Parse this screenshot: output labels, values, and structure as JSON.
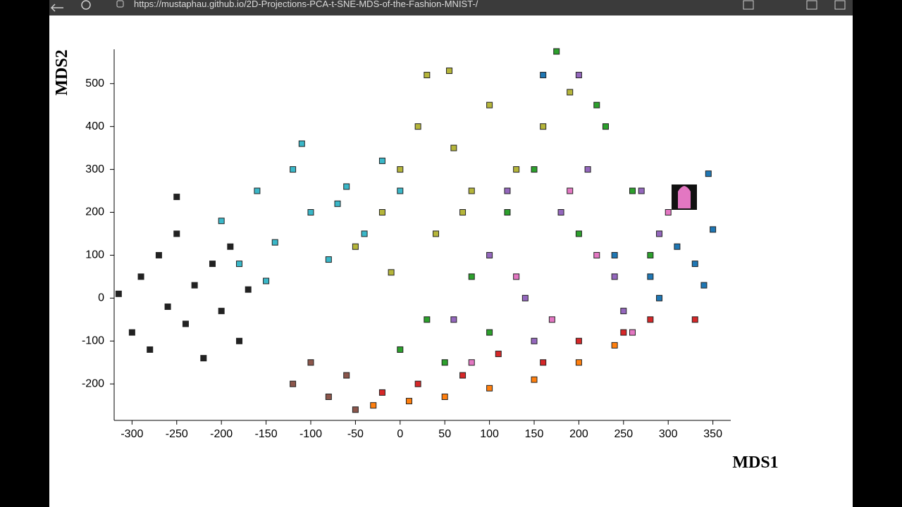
{
  "browser": {
    "url": "https://mustaphau.github.io/2D-Projections-PCA-t-SNE-MDS-of-the-Fashion-MNIST-/"
  },
  "chart_data": {
    "type": "scatter",
    "x_label": "MDS1",
    "y_label": "MDS2",
    "xlim": [
      -320,
      370
    ],
    "ylim": [
      -285,
      580
    ],
    "xticks": [
      -300,
      -250,
      -200,
      -150,
      -100,
      -50,
      0,
      50,
      100,
      150,
      200,
      250,
      300,
      350
    ],
    "yticks": [
      -200,
      -100,
      0,
      100,
      200,
      300,
      400,
      500
    ],
    "series": [
      {
        "color": "#222222",
        "x": [
          -300,
          -290,
          -280,
          -270,
          -260,
          -250,
          -240,
          -230,
          -220,
          -210,
          -200,
          -190,
          -180,
          -170,
          -250,
          -315
        ],
        "y": [
          -80,
          50,
          -120,
          100,
          -20,
          150,
          -60,
          30,
          -140,
          80,
          -30,
          120,
          -100,
          20,
          236,
          10
        ]
      },
      {
        "color": "#3ab7c8",
        "x": [
          -200,
          -180,
          -160,
          -140,
          -120,
          -100,
          -80,
          -60,
          -40,
          -20,
          0,
          -150,
          -110,
          -70
        ],
        "y": [
          180,
          80,
          250,
          130,
          300,
          200,
          90,
          260,
          150,
          320,
          250,
          40,
          360,
          220
        ]
      },
      {
        "color": "#b5b53a",
        "x": [
          -50,
          -20,
          0,
          20,
          40,
          60,
          80,
          100,
          130,
          160,
          190,
          30,
          55,
          70,
          -10
        ],
        "y": [
          120,
          200,
          300,
          400,
          150,
          350,
          250,
          450,
          300,
          400,
          480,
          520,
          530,
          200,
          60
        ]
      },
      {
        "color": "#2ca02c",
        "x": [
          0,
          30,
          80,
          120,
          150,
          175,
          200,
          230,
          260,
          280,
          220,
          100,
          50
        ],
        "y": [
          -120,
          -50,
          50,
          200,
          300,
          575,
          150,
          400,
          250,
          100,
          450,
          -80,
          -150
        ]
      },
      {
        "color": "#9467bd",
        "x": [
          60,
          100,
          140,
          180,
          210,
          240,
          270,
          290,
          150,
          200,
          120,
          250
        ],
        "y": [
          -50,
          100,
          0,
          200,
          300,
          50,
          250,
          150,
          -100,
          520,
          250,
          -30
        ]
      },
      {
        "color": "#e377c2",
        "x": [
          80,
          130,
          170,
          220,
          260,
          300,
          320,
          190
        ],
        "y": [
          -150,
          50,
          -50,
          100,
          -80,
          200,
          230,
          250
        ]
      },
      {
        "color": "#1f77b4",
        "x": [
          240,
          280,
          310,
          330,
          350,
          290,
          340,
          345,
          160
        ],
        "y": [
          100,
          50,
          120,
          80,
          160,
          0,
          30,
          290,
          520
        ]
      },
      {
        "color": "#d62728",
        "x": [
          -20,
          20,
          70,
          110,
          160,
          200,
          250,
          280,
          330
        ],
        "y": [
          -220,
          -200,
          -180,
          -130,
          -150,
          -100,
          -80,
          -50,
          -50
        ]
      },
      {
        "color": "#ff7f0e",
        "x": [
          -30,
          10,
          50,
          100,
          150,
          200,
          240
        ],
        "y": [
          -250,
          -240,
          -230,
          -210,
          -190,
          -150,
          -110
        ]
      },
      {
        "color": "#8c564b",
        "x": [
          -120,
          -80,
          -50,
          -60,
          -100
        ],
        "y": [
          -200,
          -230,
          -260,
          -180,
          -150
        ]
      }
    ]
  }
}
